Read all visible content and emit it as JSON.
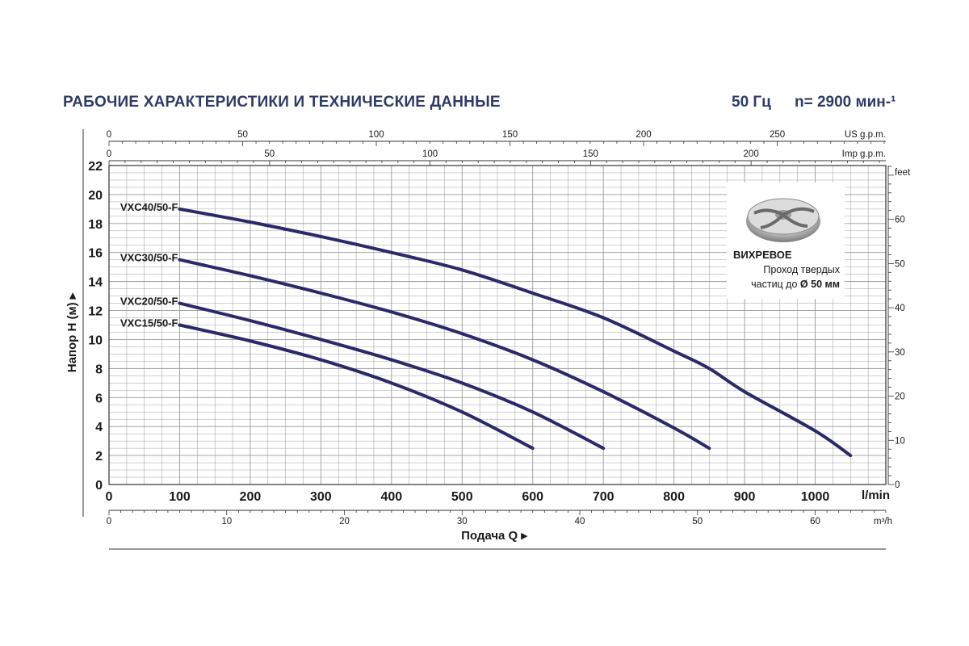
{
  "header": {
    "title": "РАБОЧИЕ ХАРАКТЕРИСТИКИ И ТЕХНИЧЕСКИЕ ДАННЫЕ",
    "frequency": "50 Гц",
    "speed": "n= 2900 мин-¹"
  },
  "note": {
    "impeller_icon": "vortex-impeller-icon",
    "title": "ВИХРЕВОЕ",
    "line1": "Проход твердых",
    "line2_prefix": "частиц до",
    "line2_value": "Ø 50 мм"
  },
  "colors": {
    "curve": "#2a2a6a",
    "text": "#2f3a68",
    "grid": "#9a9a9a"
  },
  "chart_data": {
    "type": "line",
    "ylabel": "Напор H (м)",
    "xlabel": "Подача Q",
    "x_unit": "l/min",
    "xlim": [
      0,
      1100
    ],
    "ylim": [
      0,
      22
    ],
    "x_ticks": [
      0,
      100,
      200,
      300,
      400,
      500,
      600,
      700,
      800,
      900,
      1000
    ],
    "y_ticks": [
      0,
      2,
      4,
      6,
      8,
      10,
      12,
      14,
      16,
      18,
      20,
      22
    ],
    "axis_us": {
      "unit": "US g.p.m.",
      "ticks": [
        0,
        50,
        100,
        150,
        200,
        250
      ]
    },
    "axis_imp": {
      "unit": "Imp g.p.m.",
      "ticks": [
        0,
        50,
        100,
        150,
        200
      ]
    },
    "axis_feet": {
      "unit": "feet",
      "ticks": [
        0,
        10,
        20,
        30,
        40,
        50,
        60
      ]
    },
    "axis_m3h": {
      "unit": "m³/h",
      "ticks": [
        0,
        10,
        20,
        30,
        40,
        50,
        60
      ]
    },
    "series": [
      {
        "name": "VXC40/50-F",
        "points": [
          [
            100,
            19
          ],
          [
            200,
            18.1
          ],
          [
            300,
            17.1
          ],
          [
            400,
            16
          ],
          [
            500,
            14.8
          ],
          [
            600,
            13.2
          ],
          [
            700,
            11.5
          ],
          [
            800,
            9.2
          ],
          [
            850,
            8
          ],
          [
            900,
            6.4
          ],
          [
            1000,
            3.7
          ],
          [
            1050,
            2
          ]
        ]
      },
      {
        "name": "VXC30/50-F",
        "points": [
          [
            100,
            15.5
          ],
          [
            200,
            14.4
          ],
          [
            300,
            13.2
          ],
          [
            400,
            11.9
          ],
          [
            500,
            10.4
          ],
          [
            600,
            8.6
          ],
          [
            700,
            6.4
          ],
          [
            800,
            3.9
          ],
          [
            850,
            2.5
          ]
        ]
      },
      {
        "name": "VXC20/50-F",
        "points": [
          [
            100,
            12.5
          ],
          [
            200,
            11.3
          ],
          [
            300,
            10
          ],
          [
            400,
            8.6
          ],
          [
            500,
            7
          ],
          [
            600,
            5
          ],
          [
            700,
            2.5
          ]
        ]
      },
      {
        "name": "VXC15/50-F",
        "points": [
          [
            100,
            11
          ],
          [
            200,
            9.9
          ],
          [
            300,
            8.6
          ],
          [
            400,
            7
          ],
          [
            500,
            5
          ],
          [
            600,
            2.5
          ]
        ]
      }
    ]
  }
}
